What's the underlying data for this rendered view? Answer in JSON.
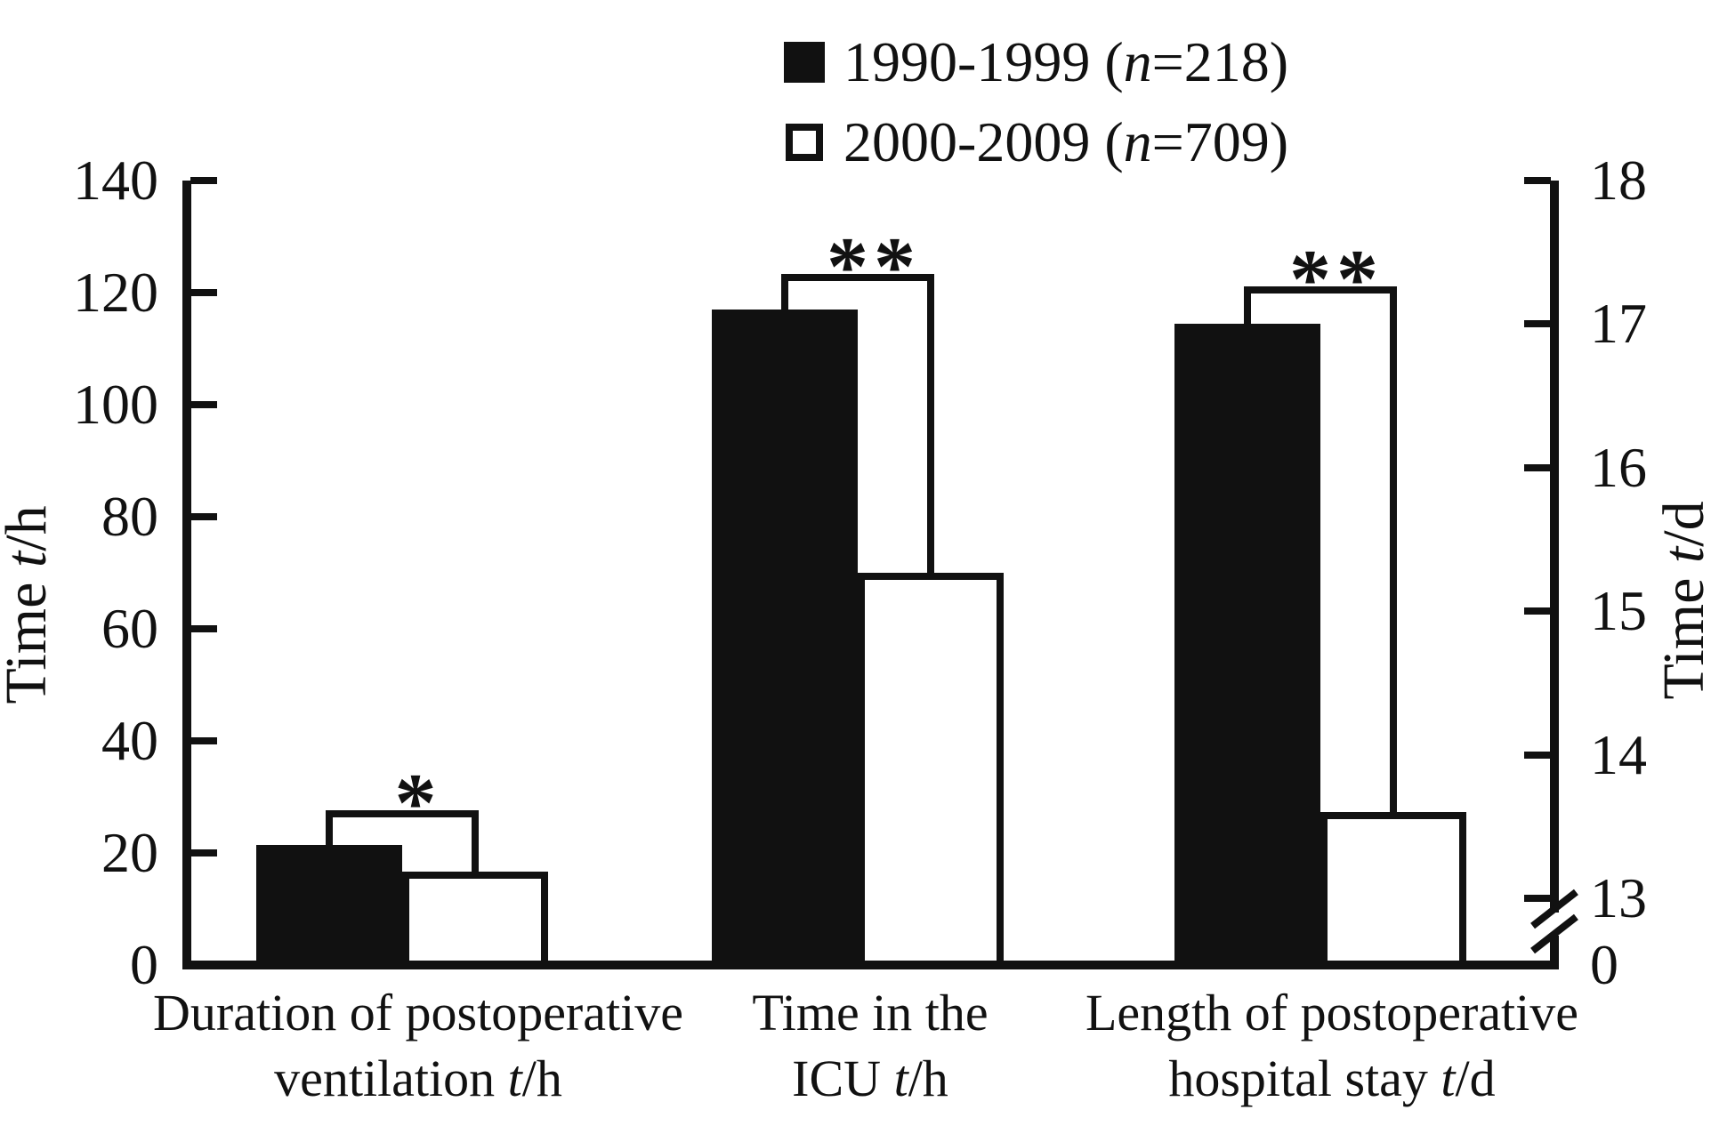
{
  "figure": {
    "background": "#ffffff",
    "ink_color": "#111111",
    "title": ""
  },
  "legend": {
    "position": "top-center",
    "items": [
      {
        "swatch": "filled-square",
        "pre": "1990-1999 (",
        "var": "n",
        "post": "=218)",
        "plain": "1990-1999 (n=218)"
      },
      {
        "swatch": "open-square",
        "pre": "2000-2009 (",
        "var": "n",
        "post": "=709)",
        "plain": "2000-2009 (n=709)"
      }
    ]
  },
  "chart_data": {
    "type": "bar",
    "title": "",
    "grid": false,
    "legend_position": "top",
    "categories_text": [
      "Duration of postoperative ventilation t/h",
      "Time in the ICU t/h",
      "Length of postoperative hospital stay t/d"
    ],
    "categories": [
      {
        "axis": "left",
        "lines": [
          [
            {
              "t": "Duration of postoperative"
            }
          ],
          [
            {
              "t": "ventilation "
            },
            {
              "t": "t",
              "italic": true
            },
            {
              "t": "/h"
            }
          ]
        ]
      },
      {
        "axis": "left",
        "lines": [
          [
            {
              "t": "Time in the"
            }
          ],
          [
            {
              "t": "ICU "
            },
            {
              "t": "t",
              "italic": true
            },
            {
              "t": "/h"
            }
          ]
        ]
      },
      {
        "axis": "right",
        "lines": [
          [
            {
              "t": "Length of postoperative"
            }
          ],
          [
            {
              "t": "hospital stay "
            },
            {
              "t": "t",
              "italic": true
            },
            {
              "t": "/d"
            }
          ]
        ]
      }
    ],
    "series": [
      {
        "name": "1990-1999 (n=218)",
        "fill": "black",
        "values": [
          21.5,
          117,
          17.0
        ]
      },
      {
        "name": "2000-2009 (n=709)",
        "fill": "white",
        "values": [
          16.7,
          70,
          13.6
        ]
      }
    ],
    "significance": [
      "*",
      "**",
      "**"
    ],
    "left_axis": {
      "label_text": "Time t/h",
      "label": [
        {
          "t": "Time "
        },
        {
          "t": "t",
          "italic": true
        },
        {
          "t": "/h"
        }
      ],
      "ticks": [
        0,
        20,
        40,
        60,
        80,
        100,
        120,
        140
      ],
      "range": [
        0,
        140
      ]
    },
    "right_axis": {
      "label_text": "Time t/d",
      "label": [
        {
          "t": "Time "
        },
        {
          "t": "t",
          "italic": true
        },
        {
          "t": "/d"
        }
      ],
      "ticks": [
        0,
        13,
        14,
        15,
        16,
        17,
        18
      ],
      "range_upper": [
        13,
        18
      ],
      "broken_axis": true
    }
  }
}
